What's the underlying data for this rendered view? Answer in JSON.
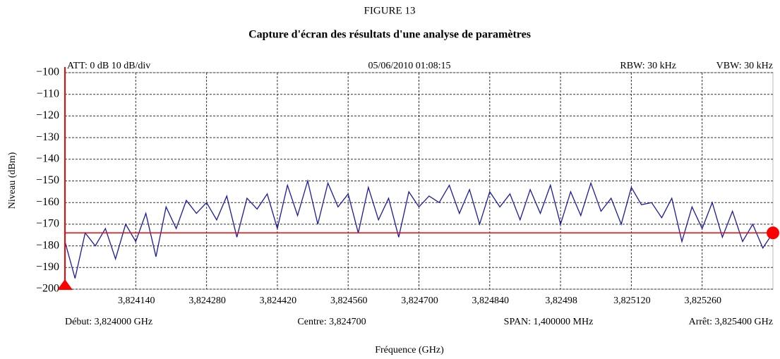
{
  "chart_data": {
    "type": "line",
    "figure": "FIGURE 13",
    "title": "Capture d'écran des résultats d'une analyse de paramètres",
    "header": [
      "ATT: 0 dB 10 dB/div",
      "05/06/2010 01:08:15",
      "RBW: 30 kHz",
      "VBW: 30 kHz"
    ],
    "footer": [
      "Début: 3,824000 GHz",
      "Centre: 3,824700",
      "SPAN: 1,400000 MHz",
      "Arrêt: 3,825400 GHz"
    ],
    "x_label": "Fréquence (GHz)",
    "y_label": "Niveau (dBm)",
    "xlim": [
      3.824,
      3.8254
    ],
    "ylim": [
      -200,
      -100
    ],
    "xticks": [
      {
        "value": 3.82414,
        "label": "3,824140"
      },
      {
        "value": 3.82428,
        "label": "3,824280"
      },
      {
        "value": 3.82442,
        "label": "3,824420"
      },
      {
        "value": 3.82456,
        "label": "3,824560"
      },
      {
        "value": 3.8247,
        "label": "3,824700"
      },
      {
        "value": 3.82484,
        "label": "3,824840"
      },
      {
        "value": 3.82498,
        "label": "3,82498"
      },
      {
        "value": 3.82512,
        "label": "3,825120"
      },
      {
        "value": 3.82526,
        "label": "3,825260"
      }
    ],
    "yticks": [
      {
        "value": -100,
        "label": "−100"
      },
      {
        "value": -110,
        "label": "−110"
      },
      {
        "value": -120,
        "label": "−120"
      },
      {
        "value": -130,
        "label": "−130"
      },
      {
        "value": -140,
        "label": "−140"
      },
      {
        "value": -150,
        "label": "−150"
      },
      {
        "value": -160,
        "label": "−160"
      },
      {
        "value": -170,
        "label": "−170"
      },
      {
        "value": -180,
        "label": "−180"
      },
      {
        "value": -190,
        "label": "−190"
      },
      {
        "value": -200,
        "label": "−200"
      }
    ],
    "grid": true,
    "reference_level": -174,
    "reference_color": "#ff0000",
    "x": [
      3.824,
      3.82402,
      3.82404,
      3.82406,
      3.82408,
      3.8241,
      3.82412,
      3.82414,
      3.82416,
      3.82418,
      3.8242,
      3.82422,
      3.82424,
      3.82426,
      3.82428,
      3.8243,
      3.82432,
      3.82434,
      3.82436,
      3.82438,
      3.8244,
      3.82442,
      3.82444,
      3.82446,
      3.82448,
      3.8245,
      3.82452,
      3.82454,
      3.82456,
      3.82458,
      3.8246,
      3.82462,
      3.82464,
      3.82466,
      3.82468,
      3.8247,
      3.82472,
      3.82474,
      3.82476,
      3.82478,
      3.8248,
      3.82482,
      3.82484,
      3.82486,
      3.82488,
      3.8249,
      3.82492,
      3.82494,
      3.82496,
      3.82498,
      3.825,
      3.82502,
      3.82504,
      3.82506,
      3.82508,
      3.8251,
      3.82512,
      3.82514,
      3.82516,
      3.82518,
      3.8252,
      3.82522,
      3.82524,
      3.82526,
      3.82528,
      3.8253,
      3.82532,
      3.82534,
      3.82536,
      3.82538,
      3.8254
    ],
    "series": [
      {
        "color": "#1a1aa0",
        "values": [
          -178,
          -195,
          -174,
          -180,
          -172,
          -186,
          -170,
          -178,
          -165,
          -185,
          -162,
          -172,
          -159,
          -165,
          -160,
          -168,
          -157,
          -176,
          -158,
          -163,
          -156,
          -172,
          -152,
          -166,
          -150,
          -170,
          -151,
          -162,
          -156,
          -174,
          -153,
          -168,
          -158,
          -176,
          -155,
          -162,
          -157,
          -160,
          -152,
          -165,
          -154,
          -170,
          -155,
          -162,
          -156,
          -168,
          -154,
          -165,
          -152,
          -170,
          -155,
          -166,
          -151,
          -164,
          -158,
          -170,
          -153,
          -161,
          -160,
          -167,
          -158,
          -178,
          -162,
          -172,
          -160,
          -176,
          -164,
          -178,
          -170,
          -181,
          -174
        ]
      }
    ]
  }
}
